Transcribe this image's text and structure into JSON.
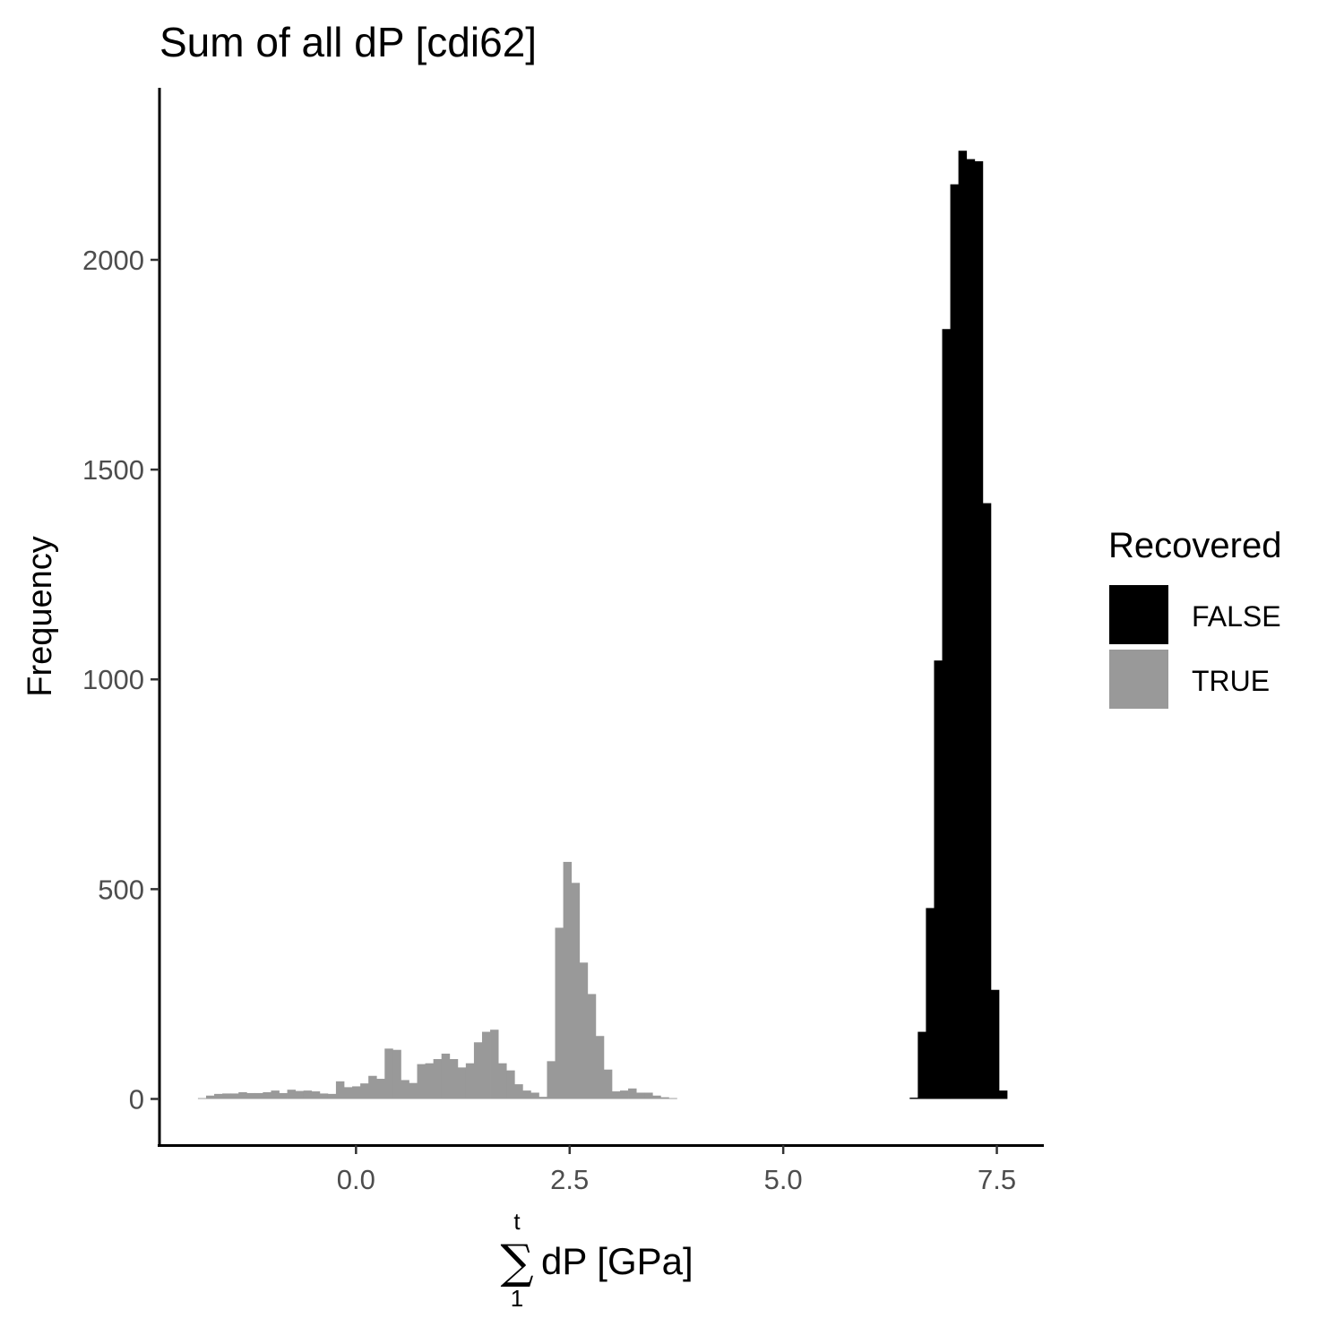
{
  "chart_data": {
    "type": "bar",
    "title": "Sum of all dP [cdi62]",
    "ylabel": "Frequency",
    "xlabel": {
      "sum_upper": "t",
      "sum_symbol": "∑",
      "sum_lower": "1",
      "text": "dP [GPa]"
    },
    "xlim": [
      -2.3,
      8.05
    ],
    "ylim": [
      -110,
      2410
    ],
    "x_ticks": [
      0.0,
      2.5,
      5.0,
      7.5
    ],
    "x_tick_labels": [
      "0.0",
      "2.5",
      "5.0",
      "7.5"
    ],
    "y_ticks": [
      0,
      500,
      1000,
      1500,
      2000
    ],
    "y_tick_labels": [
      "0",
      "500",
      "1000",
      "1500",
      "2000"
    ],
    "bin_width": 0.095,
    "grid": false,
    "legend": {
      "title": "Recovered",
      "position": "right",
      "entries": [
        {
          "label": "FALSE",
          "color": "#000000"
        },
        {
          "label": "TRUE",
          "color": "#999999"
        }
      ]
    },
    "series": [
      {
        "name": "TRUE",
        "color": "#999999",
        "start": -1.85,
        "values": [
          2,
          8,
          12,
          13,
          13,
          16,
          14,
          14,
          16,
          20,
          14,
          22,
          19,
          20,
          18,
          13,
          12,
          42,
          28,
          30,
          37,
          55,
          48,
          120,
          117,
          45,
          38,
          83,
          85,
          95,
          108,
          95,
          75,
          85,
          135,
          160,
          165,
          85,
          68,
          35,
          20,
          15,
          5,
          90,
          408,
          565,
          515,
          325,
          250,
          150,
          70,
          18,
          20,
          25,
          15,
          15,
          8,
          4,
          2
        ]
      },
      {
        "name": "FALSE",
        "color": "#000000",
        "start": 6.48,
        "values": [
          3,
          160,
          455,
          1045,
          1835,
          2180,
          2260,
          2240,
          2235,
          1420,
          260,
          20
        ]
      }
    ]
  }
}
